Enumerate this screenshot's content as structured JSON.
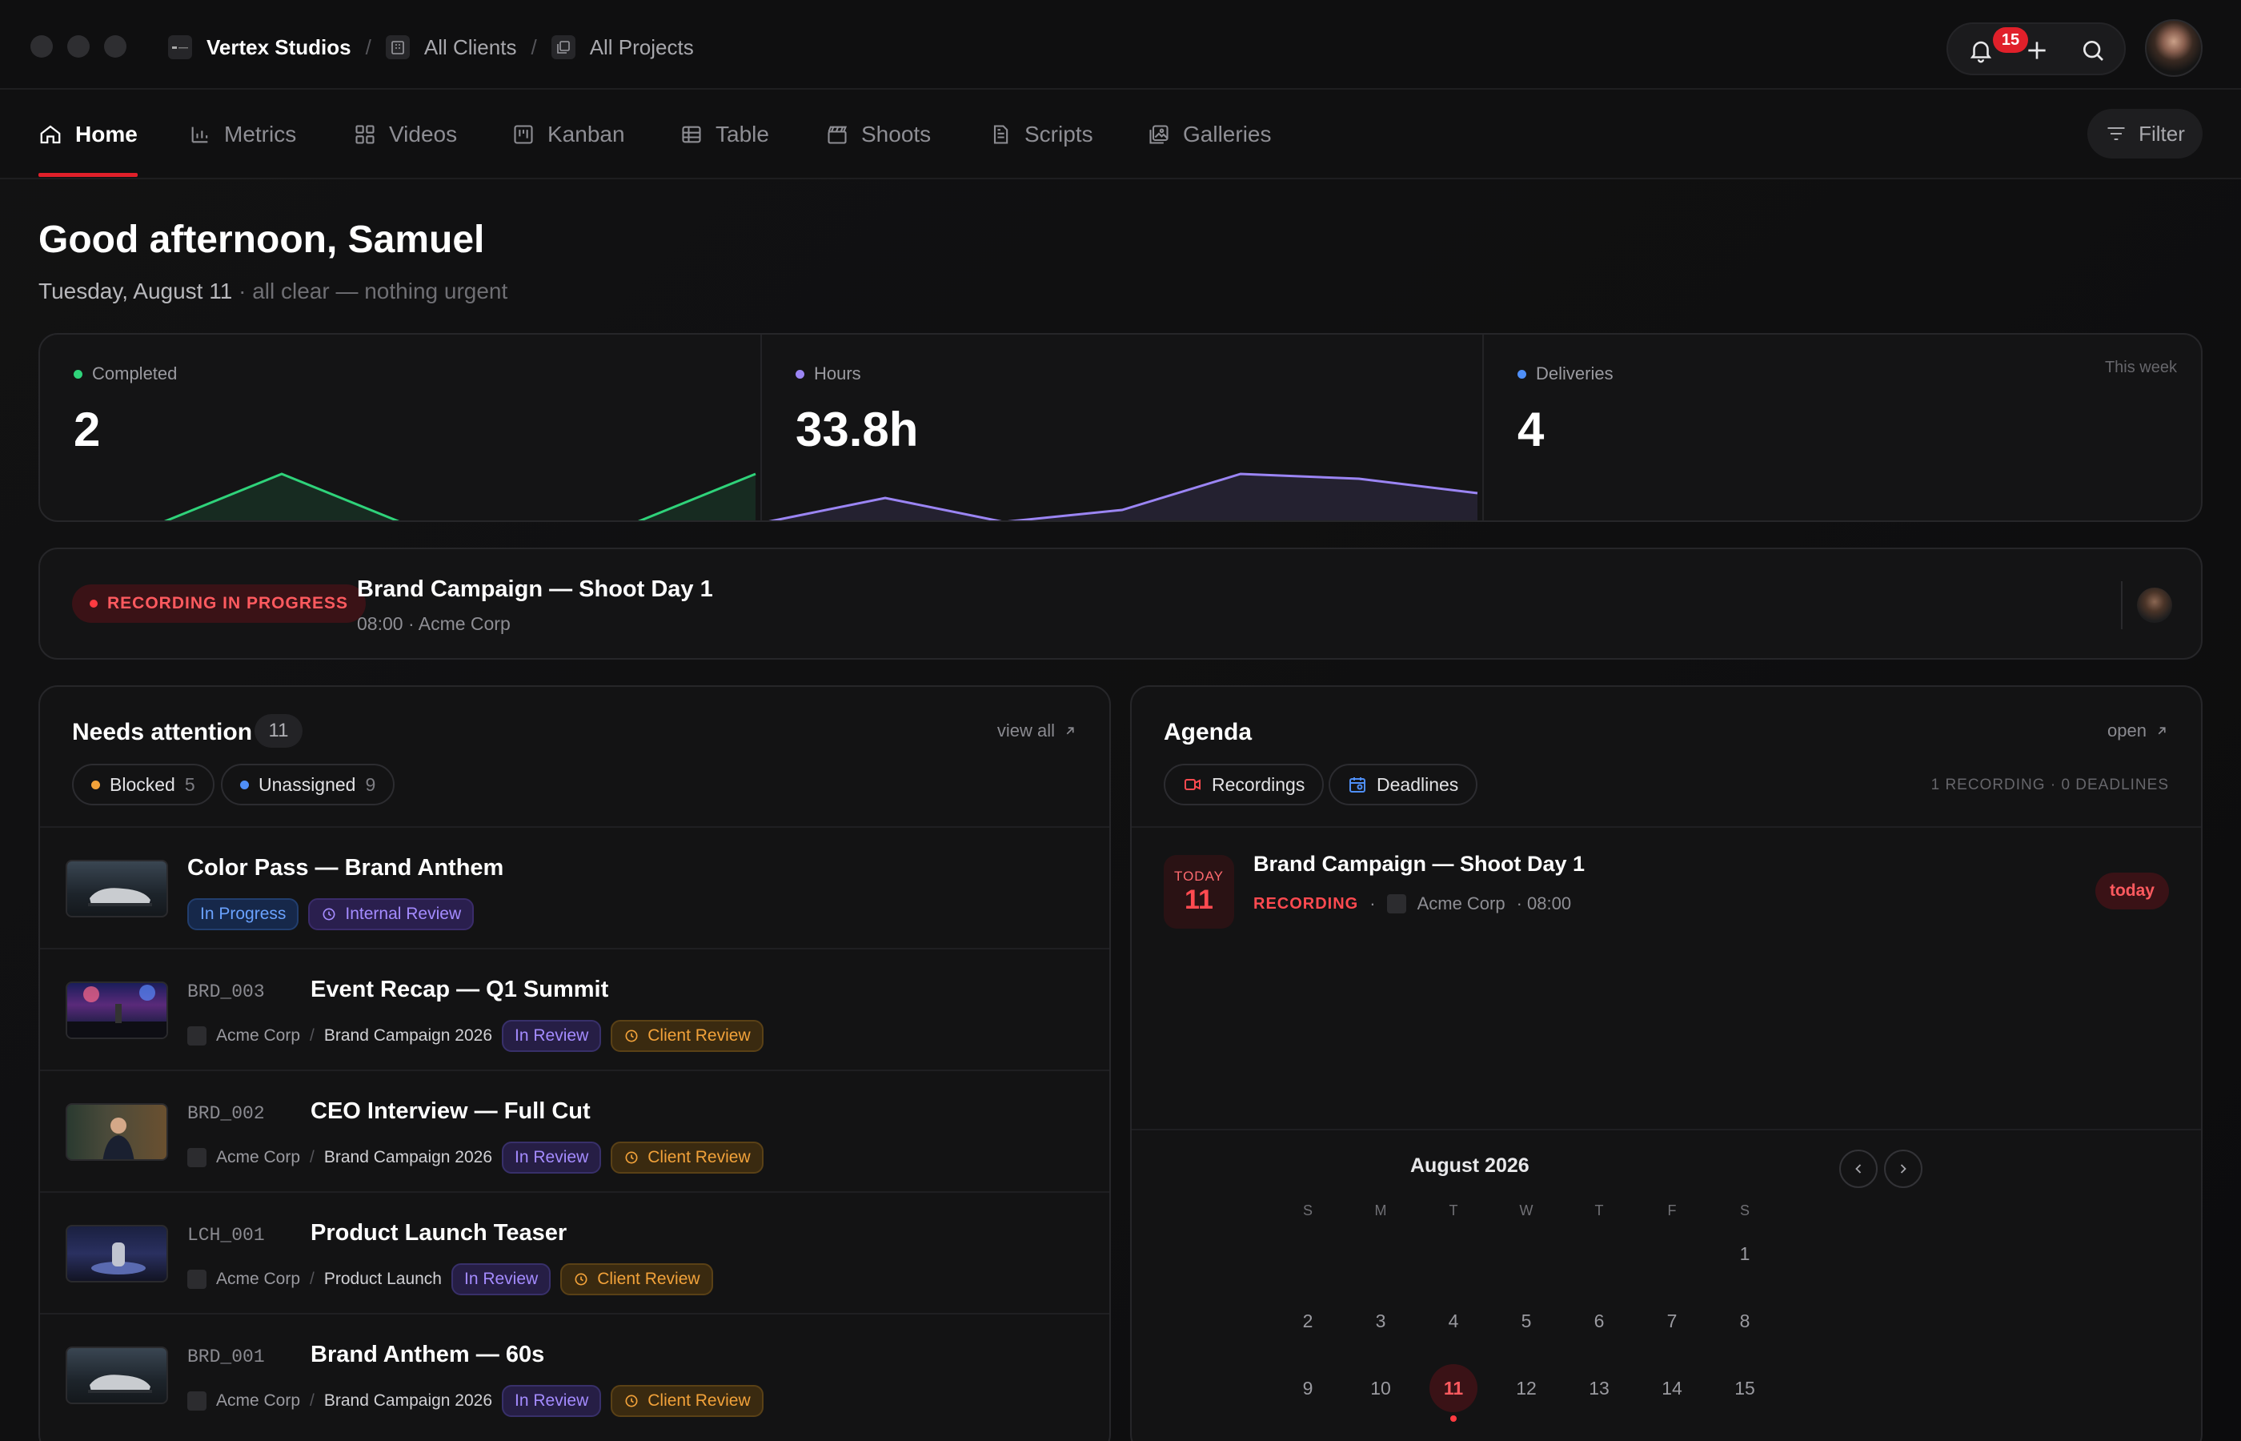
{
  "app": {
    "brand": "Vertex Studios",
    "breadcrumb": [
      "All Clients",
      "All Projects"
    ],
    "notification_count": "15"
  },
  "nav": {
    "tabs": [
      {
        "label": "Home",
        "icon": "home-icon",
        "active": true
      },
      {
        "label": "Metrics",
        "icon": "bar-chart-icon"
      },
      {
        "label": "Videos",
        "icon": "grid-icon"
      },
      {
        "label": "Kanban",
        "icon": "kanban-icon"
      },
      {
        "label": "Table",
        "icon": "table-icon"
      },
      {
        "label": "Shoots",
        "icon": "clapperboard-icon"
      },
      {
        "label": "Scripts",
        "icon": "document-icon"
      },
      {
        "label": "Galleries",
        "icon": "gallery-icon"
      }
    ],
    "filter_label": "Filter"
  },
  "header": {
    "greeting": "Good afternoon, Samuel",
    "date": "Tuesday, August 11",
    "status": "· all clear — nothing urgent"
  },
  "stats": {
    "period": "This week",
    "items": [
      {
        "label": "Completed",
        "value": "2",
        "color": "#2fd37a",
        "trend": [
          0,
          0,
          1,
          0,
          0,
          0,
          1
        ]
      },
      {
        "label": "Hours",
        "value": "33.8h",
        "color": "#9b85f4",
        "trend": [
          0,
          0.5,
          0,
          0.25,
          1,
          0.9,
          0.6
        ]
      },
      {
        "label": "Deliveries",
        "value": "4",
        "color": "#4f8ff7"
      }
    ]
  },
  "recording": {
    "badge": "RECORDING IN PROGRESS",
    "title": "Brand Campaign — Shoot Day 1",
    "meta": "08:00 · Acme Corp"
  },
  "attention": {
    "title": "Needs attention",
    "count": "11",
    "view_all": "view all",
    "filters": [
      {
        "label": "Blocked",
        "count": "5",
        "color": "#f2a23a"
      },
      {
        "label": "Unassigned",
        "count": "9",
        "color": "#4f8ff7"
      }
    ],
    "items": [
      {
        "code": "",
        "title": "Color Pass — Brand Anthem",
        "client": "",
        "project": "",
        "status": "In Progress",
        "review": "Internal Review"
      },
      {
        "code": "BRD_003",
        "title": "Event Recap — Q1 Summit",
        "client": "Acme Corp",
        "project": "Brand Campaign 2026",
        "status": "In Review",
        "review": "Client Review"
      },
      {
        "code": "BRD_002",
        "title": "CEO Interview — Full Cut",
        "client": "Acme Corp",
        "project": "Brand Campaign 2026",
        "status": "In Review",
        "review": "Client Review"
      },
      {
        "code": "LCH_001",
        "title": "Product Launch Teaser",
        "client": "Acme Corp",
        "project": "Product Launch",
        "status": "In Review",
        "review": "Client Review"
      },
      {
        "code": "BRD_001",
        "title": "Brand Anthem — 60s",
        "client": "Acme Corp",
        "project": "Brand Campaign 2026",
        "status": "In Review",
        "review": "Client Review"
      }
    ]
  },
  "agenda": {
    "title": "Agenda",
    "open": "open",
    "filters": [
      "Recordings",
      "Deadlines"
    ],
    "summary": "1 RECORDING · 0 DEADLINES",
    "event": {
      "day_label": "TODAY",
      "day": "11",
      "title": "Brand Campaign — Shoot Day 1",
      "type": "RECORDING",
      "client": "Acme Corp",
      "time": "· 08:00",
      "tag": "today"
    },
    "calendar": {
      "month": "August 2026",
      "weekdays": [
        "S",
        "M",
        "T",
        "W",
        "T",
        "F",
        "S"
      ],
      "weeks": [
        [
          "",
          "",
          "",
          "",
          "",
          "",
          "1"
        ],
        [
          "2",
          "3",
          "4",
          "5",
          "6",
          "7",
          "8"
        ],
        [
          "9",
          "10",
          "11",
          "12",
          "13",
          "14",
          "15"
        ]
      ],
      "selected": "11"
    }
  }
}
